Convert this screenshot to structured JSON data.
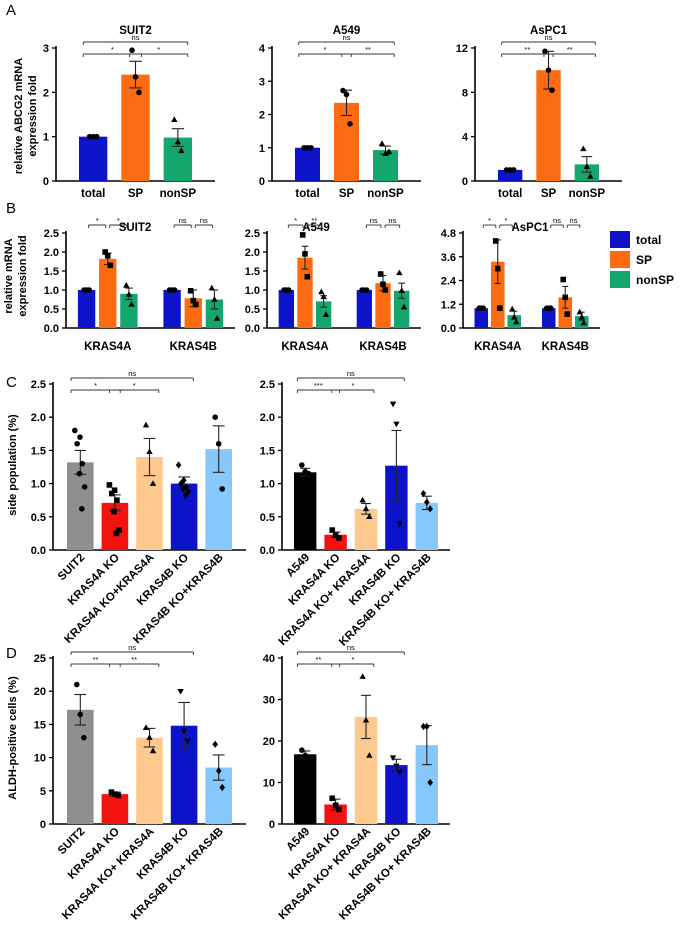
{
  "colors": {
    "total": "#0c13c8",
    "SP": "#fc6a12",
    "nonSP": "#14a66d",
    "gray": "#8f8f8f",
    "red": "#f2120f",
    "peach": "#fec98f",
    "blue": "#0c13c8",
    "lightblue": "#86c8fc",
    "black": "#000000"
  },
  "panel_labels": {
    "A": "A",
    "B": "B",
    "C": "C",
    "D": "D"
  },
  "y_titles": {
    "A": [
      "relative ABCG2 mRNA",
      "expression fold"
    ],
    "B": [
      "relative mRNA",
      "expression fold"
    ],
    "C": "side population (%)",
    "D": "ALDH-positive cells (%)"
  },
  "legend": [
    {
      "label": "total",
      "color": "#0c13c8"
    },
    {
      "label": "SP",
      "color": "#fc6a12"
    },
    {
      "label": "nonSP",
      "color": "#14a66d"
    }
  ],
  "chart_data": [
    {
      "id": "A-SUIT2",
      "panel": "A",
      "type": "bar",
      "title": "SUIT2",
      "categories": [
        "total",
        "SP",
        "nonSP"
      ],
      "values": [
        1.0,
        2.4,
        0.98
      ],
      "errors": [
        0.02,
        0.3,
        0.2
      ],
      "points": [
        [
          1,
          1,
          1
        ],
        [
          2.95,
          2.35,
          2.0
        ],
        [
          1.38,
          0.88,
          0.68
        ]
      ],
      "colorKeys": [
        "total",
        "SP",
        "nonSP"
      ],
      "markers": [
        "circle",
        "circle",
        "triangle"
      ],
      "ylim": [
        0,
        3
      ],
      "yticks": [
        0,
        1,
        2,
        3
      ],
      "sig": [
        {
          "from": 0,
          "to": 2,
          "label": "ns",
          "level": 0
        },
        {
          "from": 0,
          "to": 1,
          "label": "*",
          "level": 1
        },
        {
          "from": 1,
          "to": 2,
          "label": "*",
          "level": 1
        }
      ]
    },
    {
      "id": "A-A549",
      "panel": "A",
      "type": "bar",
      "title": "A549",
      "categories": [
        "total",
        "SP",
        "nonSP"
      ],
      "values": [
        1.0,
        2.35,
        0.93
      ],
      "errors": [
        0.02,
        0.38,
        0.12
      ],
      "points": [
        [
          1,
          1,
          1
        ],
        [
          2.72,
          2.6,
          1.72
        ],
        [
          1.12,
          0.82,
          0.88
        ]
      ],
      "colorKeys": [
        "total",
        "SP",
        "nonSP"
      ],
      "markers": [
        "circle",
        "circle",
        "triangle"
      ],
      "ylim": [
        0,
        4
      ],
      "yticks": [
        0,
        1,
        2,
        3,
        4
      ],
      "sig": [
        {
          "from": 0,
          "to": 2,
          "label": "ns",
          "level": 0
        },
        {
          "from": 0,
          "to": 1,
          "label": "*",
          "level": 1
        },
        {
          "from": 1,
          "to": 2,
          "label": "**",
          "level": 1
        }
      ]
    },
    {
      "id": "A-AsPC1",
      "panel": "A",
      "type": "bar",
      "title": "AsPC1",
      "categories": [
        "total",
        "SP",
        "nonSP"
      ],
      "values": [
        1.0,
        10.0,
        1.5
      ],
      "errors": [
        0.05,
        1.7,
        0.7
      ],
      "points": [
        [
          1,
          1,
          1
        ],
        [
          11.7,
          10.0,
          8.2
        ],
        [
          2.9,
          1.3,
          0.4
        ]
      ],
      "colorKeys": [
        "total",
        "SP",
        "nonSP"
      ],
      "markers": [
        "circle",
        "circle",
        "triangle"
      ],
      "ylim": [
        0,
        12
      ],
      "yticks": [
        0,
        4,
        8,
        12
      ],
      "sig": [
        {
          "from": 0,
          "to": 2,
          "label": "ns",
          "level": 0
        },
        {
          "from": 0,
          "to": 1,
          "label": "**",
          "level": 1
        },
        {
          "from": 1,
          "to": 2,
          "label": "**",
          "level": 1
        }
      ]
    },
    {
      "id": "B-SUIT2",
      "panel": "B",
      "type": "bar",
      "title": "SUIT2",
      "groups": [
        "KRAS4A",
        "KRAS4B"
      ],
      "categories": [
        "total",
        "SP",
        "nonSP",
        "total",
        "SP",
        "nonSP"
      ],
      "values": [
        1.0,
        1.82,
        0.9,
        1.0,
        0.78,
        0.75
      ],
      "errors": [
        0.02,
        0.15,
        0.15,
        0.02,
        0.22,
        0.25
      ],
      "points": [
        [
          1,
          1,
          1
        ],
        [
          2.0,
          1.9,
          1.65
        ],
        [
          1.12,
          0.88,
          0.62
        ],
        [
          1,
          1,
          1
        ],
        [
          0.98,
          0.72,
          0.62
        ],
        [
          1.05,
          0.75,
          0.25
        ]
      ],
      "colorKeys": [
        "total",
        "SP",
        "nonSP",
        "total",
        "SP",
        "nonSP"
      ],
      "markers": [
        "circle",
        "square",
        "triangle",
        "circle",
        "square",
        "triangle"
      ],
      "ylim": [
        0,
        2.5
      ],
      "yticks": [
        0.0,
        0.5,
        1.0,
        1.5,
        2.0,
        2.5
      ],
      "sig": [
        {
          "from": 0,
          "to": 1,
          "label": "*",
          "level": 0
        },
        {
          "from": 1,
          "to": 2,
          "label": "*",
          "level": 0
        },
        {
          "from": 3,
          "to": 4,
          "label": "ns",
          "level": 0
        },
        {
          "from": 4,
          "to": 5,
          "label": "ns",
          "level": 0
        }
      ]
    },
    {
      "id": "B-A549",
      "panel": "B",
      "type": "bar",
      "title": "A549",
      "groups": [
        "KRAS4A",
        "KRAS4B"
      ],
      "categories": [
        "total",
        "SP",
        "nonSP",
        "total",
        "SP",
        "nonSP"
      ],
      "values": [
        1.0,
        1.85,
        0.7,
        1.0,
        1.18,
        0.98
      ],
      "errors": [
        0.02,
        0.3,
        0.15,
        0.02,
        0.2,
        0.2
      ],
      "points": [
        [
          1,
          1,
          1
        ],
        [
          2.45,
          1.95,
          1.35
        ],
        [
          0.95,
          0.82,
          0.35
        ],
        [
          1,
          1,
          1
        ],
        [
          1.42,
          1.15,
          1.0
        ],
        [
          1.45,
          0.98,
          0.55
        ]
      ],
      "colorKeys": [
        "total",
        "SP",
        "nonSP",
        "total",
        "SP",
        "nonSP"
      ],
      "markers": [
        "circle",
        "square",
        "triangle",
        "circle",
        "square",
        "triangle"
      ],
      "ylim": [
        0,
        2.5
      ],
      "yticks": [
        0.0,
        0.5,
        1.0,
        1.5,
        2.0,
        2.5
      ],
      "sig": [
        {
          "from": 0,
          "to": 1,
          "label": "*",
          "level": 0
        },
        {
          "from": 1,
          "to": 2,
          "label": "**",
          "level": 0
        },
        {
          "from": 3,
          "to": 4,
          "label": "ns",
          "level": 0
        },
        {
          "from": 4,
          "to": 5,
          "label": "ns",
          "level": 0
        }
      ]
    },
    {
      "id": "B-AsPC1",
      "panel": "B",
      "type": "bar",
      "title": "AsPC1",
      "groups": [
        "KRAS4A",
        "KRAS4B"
      ],
      "categories": [
        "total",
        "SP",
        "nonSP",
        "total",
        "SP",
        "nonSP"
      ],
      "values": [
        1.0,
        3.35,
        0.65,
        1.0,
        1.55,
        0.6
      ],
      "errors": [
        0.02,
        1.1,
        0.2,
        0.02,
        0.55,
        0.2
      ],
      "points": [
        [
          1,
          1,
          1
        ],
        [
          4.4,
          3.0,
          1.0
        ],
        [
          0.95,
          0.55,
          0.3
        ],
        [
          1,
          1,
          1
        ],
        [
          2.45,
          1.55,
          0.7
        ],
        [
          0.8,
          0.55,
          0.25
        ]
      ],
      "colorKeys": [
        "total",
        "SP",
        "nonSP",
        "total",
        "SP",
        "nonSP"
      ],
      "markers": [
        "circle",
        "square",
        "triangle",
        "circle",
        "square",
        "triangle"
      ],
      "ylim": [
        0,
        4.8
      ],
      "yticks": [
        0.0,
        1.2,
        2.4,
        3.6,
        4.8
      ],
      "sig": [
        {
          "from": 0,
          "to": 1,
          "label": "*",
          "level": 0
        },
        {
          "from": 1,
          "to": 2,
          "label": "*",
          "level": 0
        },
        {
          "from": 3,
          "to": 4,
          "label": "ns",
          "level": 0
        },
        {
          "from": 4,
          "to": 5,
          "label": "ns",
          "level": 0
        }
      ]
    },
    {
      "id": "C-SUIT2",
      "panel": "C",
      "type": "bar",
      "categories": [
        "SUIT2",
        "KRAS4A KO",
        "KRAS4A KO+KRAS4A",
        "KRAS4B KO",
        "KRAS4B KO+KRAS4B"
      ],
      "values": [
        1.32,
        0.71,
        1.4,
        1.0,
        1.52
      ],
      "errors": [
        0.18,
        0.12,
        0.28,
        0.1,
        0.35
      ],
      "points": [
        [
          1.8,
          1.7,
          1.6,
          1.3,
          1.15,
          0.95,
          0.62
        ],
        [
          0.98,
          0.9,
          0.85,
          0.75,
          0.58,
          0.3,
          0.25
        ],
        [
          1.88,
          1.48,
          1.0
        ],
        [
          1.28,
          1.05,
          1.0,
          0.95,
          0.92,
          0.88,
          0.82
        ],
        [
          2.0,
          1.6,
          0.92
        ]
      ],
      "colorKeys": [
        "gray",
        "red",
        "peach",
        "blue",
        "lightblue"
      ],
      "markers": [
        "circle",
        "square",
        "triangle",
        "diamond",
        "circle"
      ],
      "ylim": [
        0,
        2.5
      ],
      "yticks": [
        0.0,
        0.5,
        1.0,
        1.5,
        2.0,
        2.5
      ],
      "sig": [
        {
          "from": 0,
          "to": 3,
          "label": "ns",
          "level": 0
        },
        {
          "from": 0,
          "to": 1,
          "label": "*",
          "level": 1
        },
        {
          "from": 1,
          "to": 2,
          "label": "*",
          "level": 1
        }
      ]
    },
    {
      "id": "C-A549",
      "panel": "C",
      "type": "bar",
      "categories": [
        "A549",
        "KRAS4A KO",
        "KRAS4A KO+ KRAS4A",
        "KRAS4B KO",
        "KRAS4B KO+ KRAS4B"
      ],
      "values": [
        1.17,
        0.23,
        0.62,
        1.27,
        0.71
      ],
      "errors": [
        0.06,
        0.04,
        0.08,
        0.53,
        0.1
      ],
      "points": [
        [
          1.28,
          1.18,
          1.15
        ],
        [
          0.3,
          0.22,
          0.18
        ],
        [
          0.75,
          0.62,
          0.5
        ],
        [
          2.2,
          1.9,
          0.4
        ],
        [
          0.85,
          0.72,
          0.62
        ]
      ],
      "colorKeys": [
        "black",
        "red",
        "peach",
        "blue",
        "lightblue"
      ],
      "markers": [
        "circle",
        "square",
        "triangle",
        "triangle-down",
        "diamond"
      ],
      "ylim": [
        0,
        2.5
      ],
      "yticks": [
        0.0,
        0.5,
        1.0,
        1.5,
        2.0,
        2.5
      ],
      "sig": [
        {
          "from": 0,
          "to": 3,
          "label": "ns",
          "level": 0
        },
        {
          "from": 0,
          "to": 1,
          "label": "***",
          "level": 1
        },
        {
          "from": 1,
          "to": 2,
          "label": "*",
          "level": 1
        }
      ]
    },
    {
      "id": "D-SUIT2",
      "panel": "D",
      "type": "bar",
      "categories": [
        "SUIT2",
        "KRAS4A KO",
        "KRAS4A KO+ KRAS4A",
        "KRAS4B KO",
        "KRAS4B KO+ KRAS4B"
      ],
      "values": [
        17.2,
        4.5,
        13.0,
        14.8,
        8.5
      ],
      "errors": [
        2.3,
        0.3,
        1.4,
        3.5,
        1.9
      ],
      "points": [
        [
          21.0,
          16.5,
          13.0
        ],
        [
          4.8,
          4.5,
          4.3
        ],
        [
          14.5,
          13.0,
          11.0
        ],
        [
          20.0,
          14.0,
          12.5
        ],
        [
          12.0,
          8.0,
          5.5
        ]
      ],
      "colorKeys": [
        "gray",
        "red",
        "peach",
        "blue",
        "lightblue"
      ],
      "markers": [
        "circle",
        "square",
        "triangle",
        "triangle-down",
        "diamond"
      ],
      "ylim": [
        0,
        25
      ],
      "yticks": [
        0,
        5,
        10,
        15,
        20,
        25
      ],
      "sig": [
        {
          "from": 0,
          "to": 3,
          "label": "ns",
          "level": 0
        },
        {
          "from": 0,
          "to": 1,
          "label": "**",
          "level": 1
        },
        {
          "from": 1,
          "to": 2,
          "label": "**",
          "level": 1
        }
      ]
    },
    {
      "id": "D-A549",
      "panel": "D",
      "type": "bar",
      "categories": [
        "A549",
        "KRAS4A KO",
        "KRAS4A KO+ KRAS4A",
        "KRAS4B KO",
        "KRAS4B KO+ KRAS4B"
      ],
      "values": [
        16.8,
        4.7,
        25.8,
        14.2,
        19.0
      ],
      "errors": [
        0.8,
        1.3,
        5.2,
        1.4,
        4.7
      ],
      "points": [
        [
          17.8,
          16.5,
          16.0
        ],
        [
          6.2,
          4.5,
          3.5
        ],
        [
          35.5,
          25.0,
          16.5
        ],
        [
          16.0,
          14.0,
          12.5
        ],
        [
          23.5,
          23.5,
          10.0
        ]
      ],
      "colorKeys": [
        "black",
        "red",
        "peach",
        "blue",
        "lightblue"
      ],
      "markers": [
        "circle",
        "square",
        "triangle",
        "triangle-down",
        "diamond"
      ],
      "ylim": [
        0,
        40
      ],
      "yticks": [
        0,
        10,
        20,
        30,
        40
      ],
      "sig": [
        {
          "from": 0,
          "to": 3,
          "label": "ns",
          "level": 0
        },
        {
          "from": 0,
          "to": 1,
          "label": "**",
          "level": 1
        },
        {
          "from": 1,
          "to": 2,
          "label": "*",
          "level": 1
        }
      ]
    }
  ]
}
